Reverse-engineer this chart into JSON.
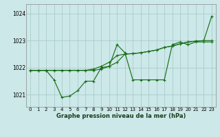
{
  "background_color": "#cce8e8",
  "grid_color": "#aacccc",
  "line_color": "#1a6e1a",
  "x_ticks": [
    0,
    1,
    2,
    3,
    4,
    5,
    6,
    7,
    8,
    9,
    10,
    11,
    12,
    13,
    14,
    15,
    16,
    17,
    18,
    19,
    20,
    21,
    22,
    23
  ],
  "y_ticks": [
    1021,
    1022,
    1023,
    1024
  ],
  "ylim": [
    1020.55,
    1024.35
  ],
  "xlim": [
    -0.5,
    23.5
  ],
  "xlabel": "Graphe pression niveau de la mer (hPa)",
  "line1_x": [
    0,
    1,
    2,
    3,
    4,
    5,
    6,
    7,
    8,
    9,
    10,
    11,
    12,
    13,
    14,
    15,
    16,
    17,
    18,
    19,
    20,
    21,
    22,
    23
  ],
  "line1_y": [
    1021.9,
    1021.9,
    1021.9,
    1021.55,
    1020.9,
    1020.95,
    1021.15,
    1021.5,
    1021.5,
    1022.0,
    1022.05,
    1022.85,
    1022.55,
    1021.55,
    1021.55,
    1021.55,
    1021.55,
    1021.55,
    1022.85,
    1022.95,
    1022.85,
    1022.95,
    1022.95,
    1022.95
  ],
  "line2_x": [
    0,
    1,
    2,
    3,
    4,
    5,
    6,
    7,
    8,
    9,
    10,
    11,
    12,
    13,
    14,
    15,
    16,
    17,
    18,
    19,
    20,
    21,
    22,
    23
  ],
  "line2_y": [
    1021.9,
    1021.9,
    1021.9,
    1021.9,
    1021.9,
    1021.9,
    1021.9,
    1021.9,
    1021.95,
    1022.05,
    1022.2,
    1022.45,
    1022.5,
    1022.52,
    1022.55,
    1022.6,
    1022.65,
    1022.75,
    1022.8,
    1022.88,
    1022.95,
    1022.98,
    1023.0,
    1023.0
  ],
  "line3_x": [
    0,
    1,
    2,
    3,
    4,
    5,
    6,
    7,
    8,
    9,
    10,
    11,
    12,
    13,
    14,
    15,
    16,
    17,
    18,
    19,
    20,
    21,
    22,
    23
  ],
  "line3_y": [
    1021.9,
    1021.9,
    1021.9,
    1021.9,
    1021.9,
    1021.9,
    1021.9,
    1021.9,
    1021.9,
    1021.95,
    1022.05,
    1022.2,
    1022.5,
    1022.52,
    1022.55,
    1022.6,
    1022.65,
    1022.75,
    1022.8,
    1022.88,
    1022.95,
    1022.98,
    1023.0,
    1023.9
  ]
}
